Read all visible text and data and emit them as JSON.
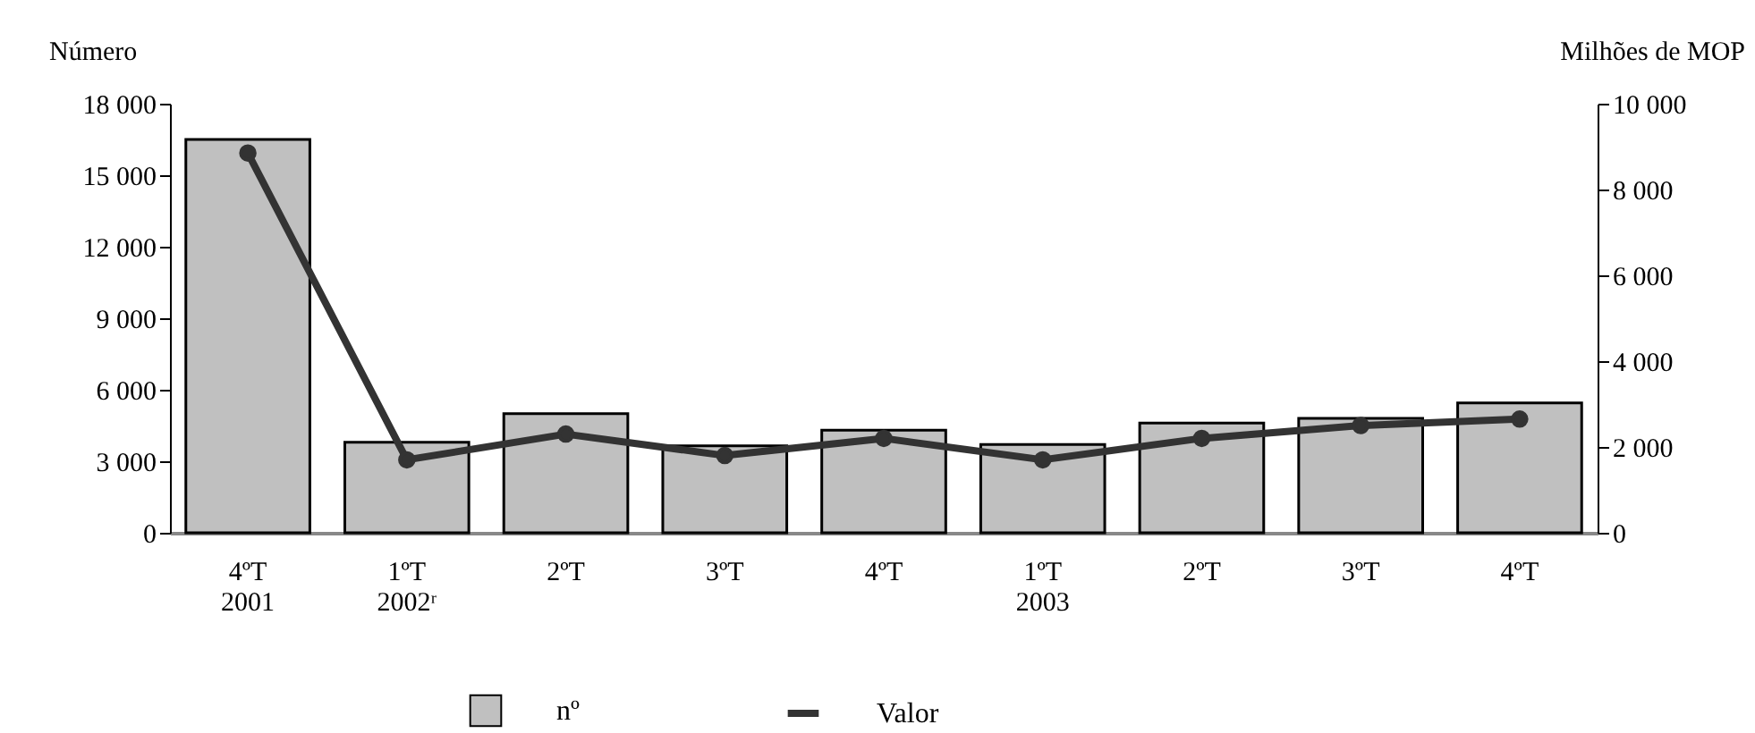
{
  "chart_data": {
    "type": "bar",
    "categories": [
      "4ºT\n2001",
      "1ºT\n2002ʳ",
      "2ºT",
      "3ºT",
      "4ºT",
      "1ºT\n2003",
      "2ºT",
      "3ºT",
      "4ºT"
    ],
    "series": [
      {
        "name": "nº",
        "color": "#c0c0c0",
        "values": [
          16500,
          3800,
          5000,
          3650,
          4300,
          3700,
          4600,
          4800,
          5450
        ]
      },
      {
        "name": "Valor",
        "type": "line",
        "axis": "y2",
        "color": "#333333",
        "values": [
          8850,
          1700,
          2300,
          1800,
          2200,
          1700,
          2200,
          2500,
          2650
        ]
      }
    ],
    "ylabel": "Número",
    "y2label": "Milhões de MOP",
    "ylim": [
      0,
      18000
    ],
    "yticks": [
      0,
      3000,
      6000,
      9000,
      12000,
      15000,
      18000
    ],
    "y2lim": [
      0,
      10000
    ],
    "y2ticks": [
      0,
      2000,
      4000,
      6000,
      8000,
      10000
    ],
    "legend": "bottom",
    "marker": "circle"
  }
}
